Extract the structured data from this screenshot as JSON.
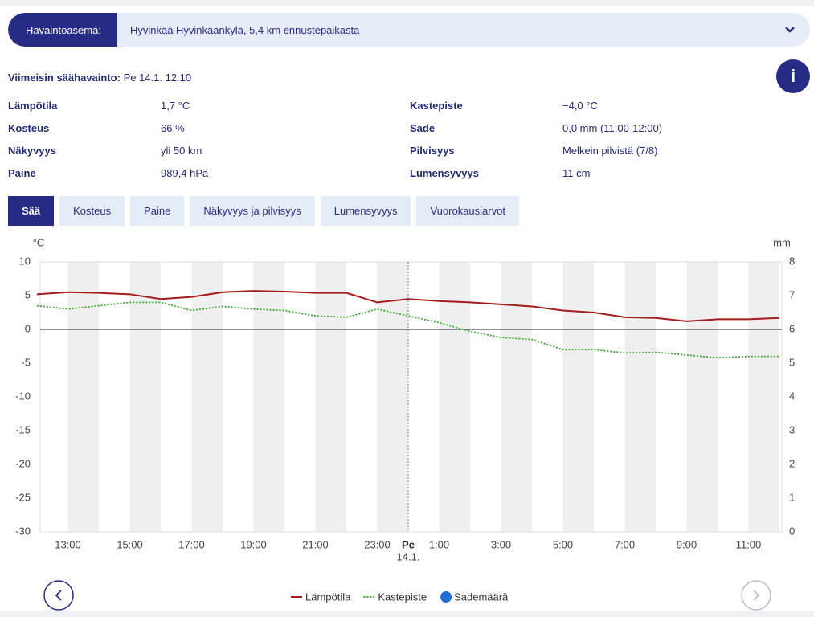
{
  "station": {
    "label": "Havaintoasema:",
    "value": "Hyvinkää Hyvinkäänkylä, 5,4 km ennustepaikasta"
  },
  "latest": {
    "label": "Viimeisin säähavainto:",
    "value": "Pe 14.1. 12:10"
  },
  "info_button": "i",
  "observations": [
    {
      "label": "Lämpötila",
      "value": "1,7 °C"
    },
    {
      "label": "Kosteus",
      "value": "66 %"
    },
    {
      "label": "Näkyvyys",
      "value": "yli 50 km"
    },
    {
      "label": "Paine",
      "value": "989,4 hPa"
    },
    {
      "label": "Kastepiste",
      "value": "−4,0 °C"
    },
    {
      "label": "Sade",
      "value": "0,0 mm (11:00-12:00)"
    },
    {
      "label": "Pilvisyys",
      "value": "Melkein pilvistä (7/8)"
    },
    {
      "label": "Lumensyvyys",
      "value": "11 cm"
    }
  ],
  "tabs": [
    "Sää",
    "Kosteus",
    "Paine",
    "Näkyvyys ja pilvisyys",
    "Lumensyvyys",
    "Vuorokausiarvot"
  ],
  "active_tab": 0,
  "chart_data": {
    "type": "line",
    "y_unit": "°C",
    "y2_unit": "mm",
    "categories": [
      null,
      "13:00",
      null,
      "15:00",
      null,
      "17:00",
      null,
      "19:00",
      null,
      "21:00",
      null,
      "23:00",
      "Pe",
      "1:00",
      null,
      "3:00",
      null,
      "5:00",
      null,
      "7:00",
      null,
      "9:00",
      null,
      "11:00",
      null
    ],
    "day_date": "14.1.",
    "ylim": [
      -30,
      10
    ],
    "yticks": [
      -30,
      -25,
      -20,
      -15,
      -10,
      -5,
      0,
      5,
      10
    ],
    "y2lim": [
      0,
      8
    ],
    "y2ticks": [
      0,
      1,
      2,
      3,
      4,
      5,
      6,
      7,
      8
    ],
    "series": [
      {
        "name": "Lämpötila",
        "color": "#a51c1c",
        "values": [
          5.2,
          5.5,
          5.4,
          5.2,
          4.5,
          4.8,
          5.5,
          5.7,
          5.6,
          5.4,
          5.4,
          4.0,
          4.5,
          4.2,
          4.0,
          3.7,
          3.4,
          2.8,
          2.5,
          1.8,
          1.7,
          1.2,
          1.5,
          1.5,
          1.7
        ]
      },
      {
        "name": "Kastepiste",
        "color": "#3aaa2e",
        "dash": "dotted",
        "values": [
          3.5,
          3.0,
          3.5,
          4.0,
          4.0,
          2.8,
          3.4,
          3.0,
          2.8,
          2.0,
          1.8,
          3.0,
          2.0,
          1.0,
          -0.3,
          -1.2,
          -1.5,
          -3.0,
          -3.0,
          -3.5,
          -3.4,
          -3.8,
          -4.2,
          -4.0,
          -4.0
        ]
      },
      {
        "name": "Sademäärä",
        "color": "#1b6fd6",
        "type": "bar",
        "axis": "y2",
        "values": [
          0,
          0,
          0,
          0,
          0,
          0,
          0,
          0,
          0,
          0,
          0,
          0,
          0,
          0,
          0,
          0,
          0,
          0,
          0,
          0,
          0,
          0,
          0,
          0,
          0
        ]
      }
    ]
  }
}
